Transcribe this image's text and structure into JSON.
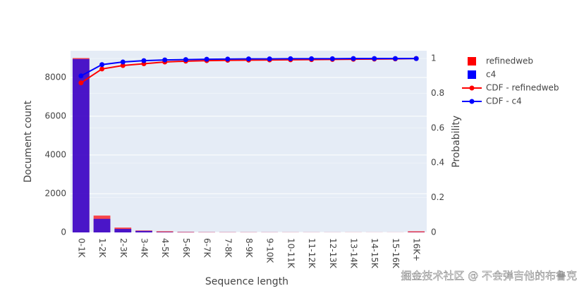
{
  "chart_data": {
    "type": "bar",
    "barmode": "overlay",
    "opacity": 0.7,
    "xlabel": "Sequence length",
    "ylabel": "Document count",
    "y2label": "Probability",
    "categories": [
      "0-1K",
      "1-2K",
      "2-3K",
      "3-4K",
      "4-5K",
      "5-6K",
      "6-7K",
      "7-8K",
      "8-9K",
      "9-10K",
      "10-11K",
      "11-12K",
      "12-13K",
      "13-14K",
      "14-15K",
      "15-16K",
      "16K+"
    ],
    "series": [
      {
        "name": "refinedweb",
        "type": "bar",
        "color": "#ff0000",
        "values": [
          9000,
          870,
          250,
          100,
          60,
          30,
          15,
          12,
          10,
          8,
          7,
          6,
          5,
          5,
          4,
          4,
          60
        ]
      },
      {
        "name": "c4",
        "type": "bar",
        "color": "#0000ff",
        "values": [
          8950,
          700,
          180,
          80,
          20,
          10,
          5,
          4,
          3,
          3,
          2,
          2,
          2,
          1,
          1,
          1,
          10
        ]
      },
      {
        "name": "CDF - refinedweb",
        "type": "line",
        "axis": "y2",
        "color": "#ff0000",
        "values": [
          0.86,
          0.94,
          0.96,
          0.97,
          0.98,
          0.985,
          0.988,
          0.99,
          0.991,
          0.992,
          0.993,
          0.994,
          0.995,
          0.996,
          0.997,
          0.998,
          1
        ]
      },
      {
        "name": "CDF - c4",
        "type": "line",
        "axis": "y2",
        "color": "#0000ff",
        "values": [
          0.9,
          0.965,
          0.98,
          0.988,
          0.992,
          0.994,
          0.996,
          0.997,
          0.998,
          0.998,
          0.999,
          0.999,
          0.999,
          1,
          1,
          1,
          1
        ]
      }
    ],
    "ylim": [
      0,
      9380
    ],
    "yticks": [
      0,
      2000,
      4000,
      6000,
      8000
    ],
    "y2lim": [
      0,
      1.045
    ],
    "y2ticks": [
      0,
      0.2,
      0.4,
      0.6,
      0.8,
      1
    ],
    "grid": true,
    "legend": "right",
    "watermark": "掘金技术社区 @ 不会弹吉他的布鲁克"
  }
}
